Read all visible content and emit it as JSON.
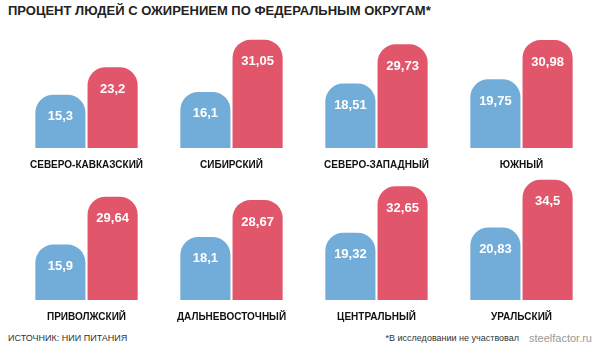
{
  "title": "ПРОЦЕНТ ЛЮДЕЙ С ОЖИРЕНИЕМ ПО ФЕДЕРАЛЬНЫМ ОКРУГАМ*",
  "source": "ИСТОЧНИК: НИИ ПИТАНИЯ",
  "footnote": "*В исследовании не участвовал",
  "watermark": "steelfactor.ru",
  "chart_data": [
    {
      "type": "bar",
      "categories": [
        "СЕВЕРО-КАВКАЗСКИЙ",
        "СИБИРСКИЙ",
        "СЕВЕРО-ЗАПАДНЫЙ",
        "ЮЖНЫЙ"
      ],
      "series": [
        {
          "color": "#72acd8",
          "values": [
            15.3,
            16.1,
            18.51,
            19.75
          ],
          "value_labels": [
            "15,3",
            "16,1",
            "18,51",
            "19,75"
          ]
        },
        {
          "color": "#e2566c",
          "values": [
            23.2,
            31.05,
            29.73,
            30.98
          ],
          "value_labels": [
            "23,2",
            "31,05",
            "29,73",
            "30,98"
          ]
        }
      ],
      "ylim": [
        0,
        35
      ],
      "yticks": [
        0,
        35
      ],
      "grid": false,
      "data_labels": true,
      "tick_labels": "x"
    },
    {
      "type": "bar",
      "categories": [
        "ПРИВОЛЖСКИЙ",
        "ДАЛЬНЕВОСТОЧНЫЙ",
        "ЦЕНТРАЛЬНЫЙ",
        "УРАЛЬСКИЙ"
      ],
      "series": [
        {
          "color": "#72acd8",
          "values": [
            15.9,
            18.1,
            19.32,
            20.83
          ],
          "value_labels": [
            "15,9",
            "18,1",
            "19,32",
            "20,83"
          ]
        },
        {
          "color": "#e2566c",
          "values": [
            29.64,
            28.67,
            32.65,
            34.5
          ],
          "value_labels": [
            "29,64",
            "28,67",
            "32,65",
            "34,5"
          ]
        }
      ],
      "ylim": [
        0,
        35
      ],
      "yticks": [
        0,
        35
      ],
      "grid": false,
      "data_labels": true,
      "tick_labels": "x"
    }
  ]
}
